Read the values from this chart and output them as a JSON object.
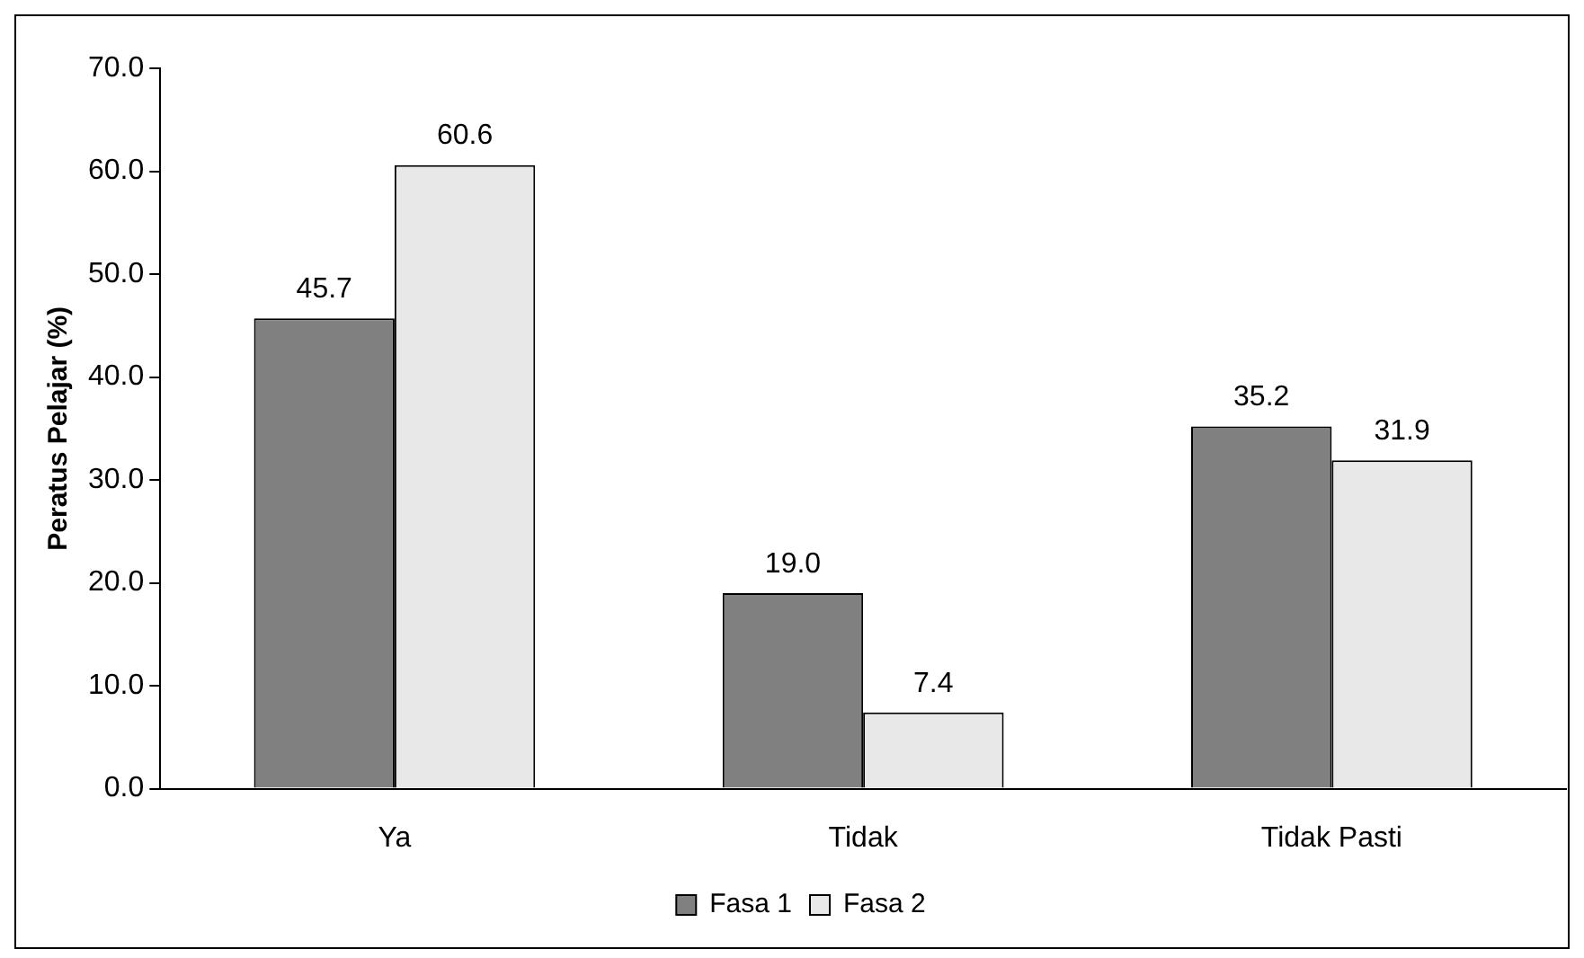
{
  "chart_data": {
    "type": "bar",
    "ylabel": "Peratus Pelajar (%)",
    "categories": [
      "Ya",
      "Tidak",
      "Tidak Pasti"
    ],
    "series": [
      {
        "name": "Fasa 1",
        "color": "#808080",
        "values": [
          45.7,
          19.0,
          35.2
        ]
      },
      {
        "name": "Fasa 2",
        "color": "#e8e8e8",
        "values": [
          60.6,
          7.4,
          31.9
        ]
      }
    ],
    "value_labels": [
      [
        "45.7",
        "19.0",
        "35.2"
      ],
      [
        "60.6",
        "7.4",
        "31.9"
      ]
    ],
    "ylim": [
      0,
      70
    ],
    "yticks": [
      {
        "value": 0,
        "label": "0.0"
      },
      {
        "value": 10,
        "label": "10.0"
      },
      {
        "value": 20,
        "label": "20.0"
      },
      {
        "value": 30,
        "label": "30.0"
      },
      {
        "value": 40,
        "label": "40.0"
      },
      {
        "value": 50,
        "label": "50.0"
      },
      {
        "value": 60,
        "label": "60.0"
      },
      {
        "value": 70,
        "label": "70.0"
      }
    ],
    "grid": false,
    "legend": "bottom"
  }
}
